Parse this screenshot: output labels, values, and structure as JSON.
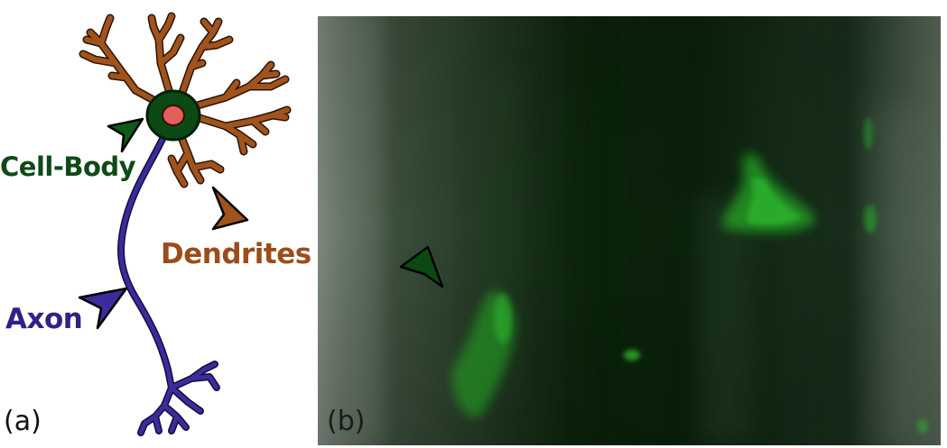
{
  "colors": {
    "dendrite": "#a0531c",
    "cell_body": "#0c4a14",
    "nucleus": "#e0605a",
    "axon": "#3a2c9a",
    "cell_body_label": "#0e4a18",
    "dendrite_label": "#9a4d1a",
    "axon_label": "#2e2385",
    "micro_fluor": "#2ad42a"
  },
  "labels": {
    "cell_body": "Cell-Body",
    "dendrites": "Dendrites",
    "axon": "Axon"
  },
  "panels": {
    "a": "(a)",
    "b": "(b)"
  },
  "icons": {
    "arrow": "triangle-arrowhead-icon",
    "neuron": "neuron-illustration",
    "micrograph": "fluorescence-micrograph"
  }
}
